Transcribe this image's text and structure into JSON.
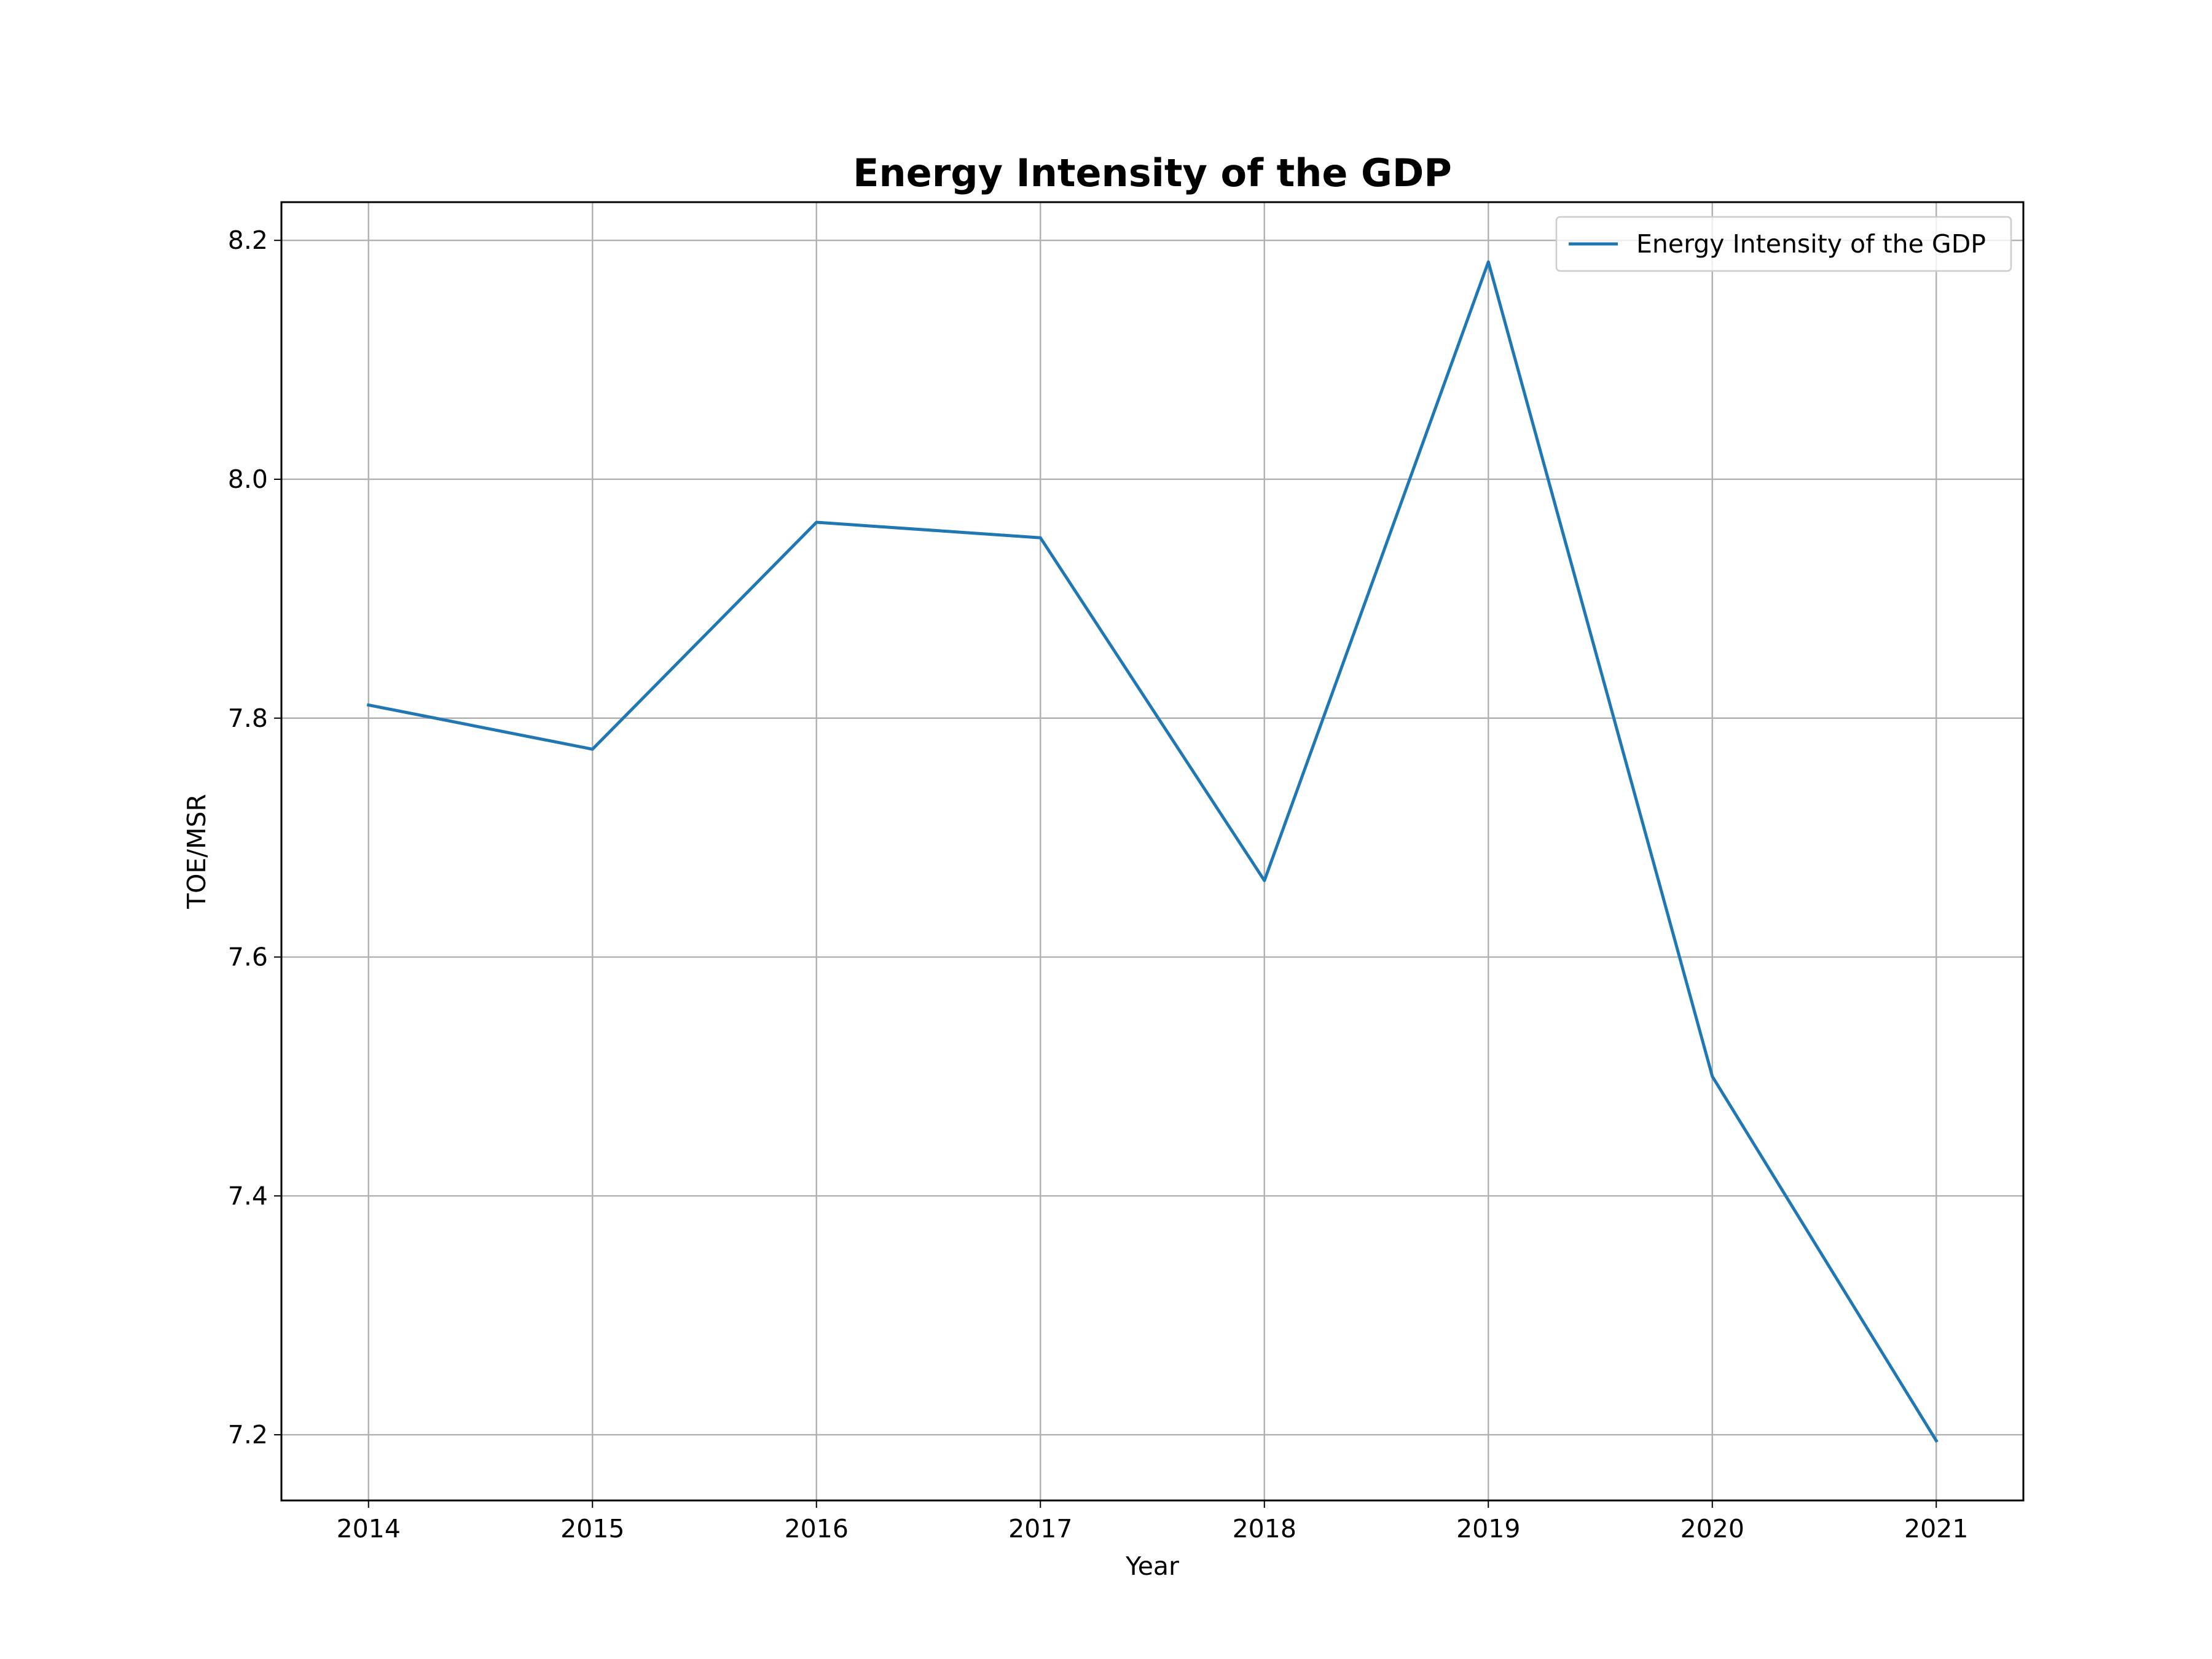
{
  "chart_data": {
    "type": "line",
    "title": "Energy Intensity of the GDP",
    "xlabel": "Year",
    "ylabel": "TOE/MSR",
    "x": [
      "2014",
      "2015",
      "2016",
      "2017",
      "2018",
      "2019",
      "2020",
      "2021"
    ],
    "series": [
      {
        "name": "Energy Intensity of the GDP",
        "color": "#1f77b4",
        "values": [
          7.811,
          7.774,
          7.964,
          7.951,
          7.664,
          8.182,
          7.5,
          7.195
        ]
      }
    ],
    "yticks": [
      "7.2",
      "7.4",
      "7.6",
      "7.8",
      "8.0",
      "8.2"
    ],
    "ylim": [
      7.145,
      8.232
    ],
    "grid": true,
    "legend": "top-right"
  }
}
